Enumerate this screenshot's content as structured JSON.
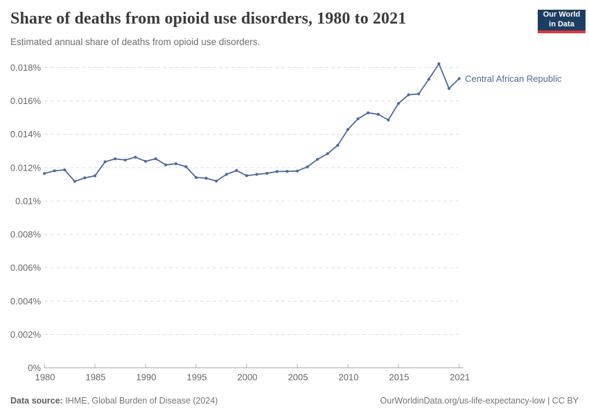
{
  "header": {
    "title": "Share of deaths from opioid use disorders, 1980 to 2021",
    "subtitle": "Estimated annual share of deaths from opioid use disorders.",
    "logo": {
      "line1": "Our World",
      "line2": "in Data",
      "bg_color": "#1d3d63",
      "bar_color": "#d93a3a"
    }
  },
  "chart_data": {
    "type": "line",
    "title": "Share of deaths from opioid use disorders, 1980 to 2021",
    "xlabel": "",
    "ylabel": "",
    "xlim": [
      1980,
      2021
    ],
    "ylim": [
      0,
      0.0186
    ],
    "grid": "horizontal-dashed",
    "legend_position": "end-of-line",
    "x_ticks": [
      1980,
      1985,
      1990,
      1995,
      2000,
      2005,
      2010,
      2015,
      2021
    ],
    "y_ticks": [
      {
        "value": 0.0,
        "label": "0%"
      },
      {
        "value": 0.002,
        "label": "0.002%"
      },
      {
        "value": 0.004,
        "label": "0.004%"
      },
      {
        "value": 0.006,
        "label": "0.006%"
      },
      {
        "value": 0.008,
        "label": "0.008%"
      },
      {
        "value": 0.01,
        "label": "0.01%"
      },
      {
        "value": 0.012,
        "label": "0.012%"
      },
      {
        "value": 0.014,
        "label": "0.014%"
      },
      {
        "value": 0.016,
        "label": "0.016%"
      },
      {
        "value": 0.018,
        "label": "0.018%"
      }
    ],
    "x": [
      1980,
      1981,
      1982,
      1983,
      1984,
      1985,
      1986,
      1987,
      1988,
      1989,
      1990,
      1991,
      1992,
      1993,
      1994,
      1995,
      1996,
      1997,
      1998,
      1999,
      2000,
      2001,
      2002,
      2003,
      2004,
      2005,
      2006,
      2007,
      2008,
      2009,
      2010,
      2011,
      2012,
      2013,
      2014,
      2015,
      2016,
      2017,
      2018,
      2019,
      2020,
      2021
    ],
    "series": [
      {
        "name": "Central African Republic",
        "color": "#4C6A9D",
        "unit": "% of deaths",
        "values": [
          0.01165,
          0.01181,
          0.01187,
          0.01118,
          0.01139,
          0.01151,
          0.01235,
          0.01253,
          0.01246,
          0.01263,
          0.01238,
          0.01254,
          0.01217,
          0.01224,
          0.01206,
          0.01141,
          0.01137,
          0.0112,
          0.0116,
          0.01183,
          0.01152,
          0.0116,
          0.01166,
          0.01177,
          0.01178,
          0.0118,
          0.01205,
          0.0125,
          0.01284,
          0.01334,
          0.01429,
          0.01493,
          0.01529,
          0.0152,
          0.01486,
          0.01585,
          0.01637,
          0.01642,
          0.0173,
          0.01823,
          0.01675,
          0.01734
        ]
      }
    ],
    "style": {
      "gridline_color": "#dcdcdc",
      "axis_color": "#b3b3b3",
      "tick_label_color": "#666666"
    }
  },
  "footer": {
    "source_label": "Data source:",
    "source_text": " IHME, Global Burden of Disease (2024)",
    "credit": "OurWorldinData.org/us-life-expectancy-low | CC BY"
  }
}
